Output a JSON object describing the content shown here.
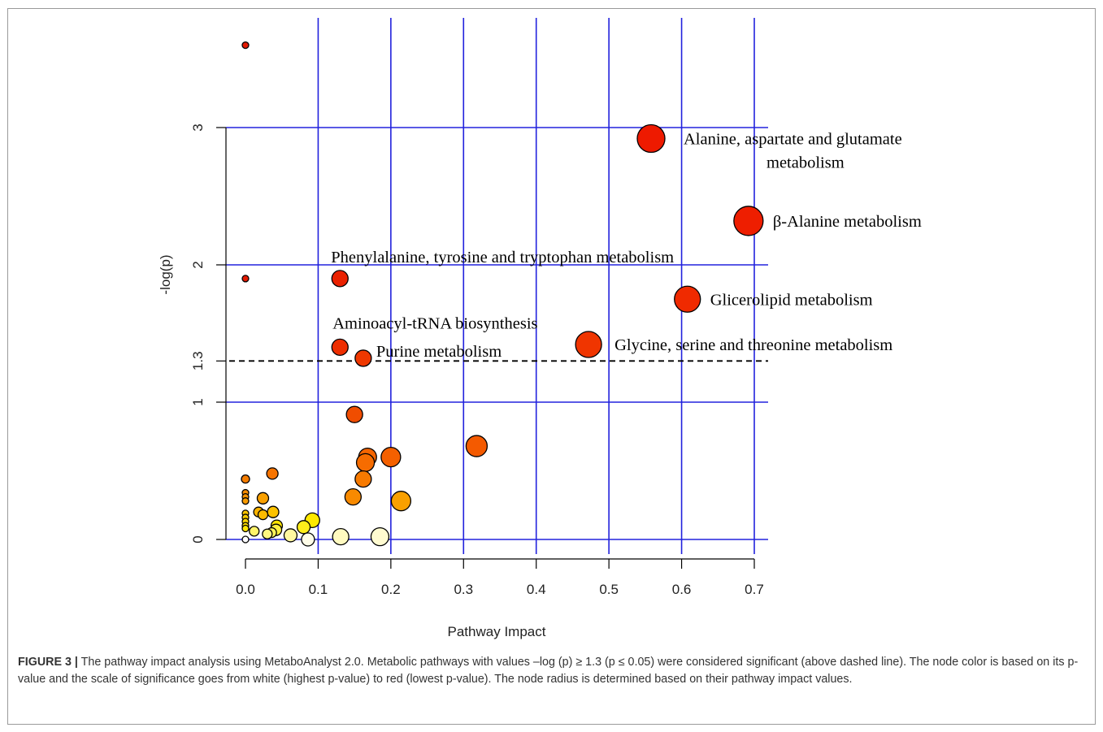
{
  "chart_data": {
    "type": "scatter",
    "xlabel": "Pathway Impact",
    "ylabel": "-log(p)",
    "xlim": [
      -0.03,
      0.72
    ],
    "ylim": [
      0,
      3.8
    ],
    "x_ticks": [
      "0.0",
      "0.1",
      "0.2",
      "0.3",
      "0.4",
      "0.5",
      "0.6",
      "0.7"
    ],
    "y_ticks": [
      "0",
      "1",
      "1.3",
      "2",
      "3"
    ],
    "grid": true,
    "grid_color": "#2222dd",
    "threshold": {
      "y": 1.3,
      "style": "dashed"
    },
    "points": [
      {
        "x": 0.0,
        "y": 3.6,
        "r": 4,
        "color": "#e31a00"
      },
      {
        "x": 0.0,
        "y": 1.9,
        "r": 4,
        "color": "#e31a00"
      },
      {
        "x": 0.558,
        "y": 2.92,
        "r": 17,
        "color": "#ee1a00",
        "label": "Alanine, aspartate and glutamate\nmetabolism"
      },
      {
        "x": 0.692,
        "y": 2.32,
        "r": 18,
        "color": "#ee1e00",
        "label": "β-Alanine metabolism"
      },
      {
        "x": 0.608,
        "y": 1.75,
        "r": 16,
        "color": "#f02a00",
        "label": "Glicerolipid metabolism"
      },
      {
        "x": 0.13,
        "y": 1.9,
        "r": 10,
        "color": "#ea2100",
        "label": "Phenylalanine, tyrosine and tryptophan metabolism"
      },
      {
        "x": 0.13,
        "y": 1.4,
        "r": 10,
        "color": "#ee2e00",
        "label": "Aminoacyl-tRNA biosynthesis"
      },
      {
        "x": 0.472,
        "y": 1.42,
        "r": 16,
        "color": "#f03500",
        "label": "Glycine, serine and threonine metabolism"
      },
      {
        "x": 0.162,
        "y": 1.32,
        "r": 10,
        "color": "#ef3800",
        "label": "Purine metabolism"
      },
      {
        "x": 0.15,
        "y": 0.91,
        "r": 10,
        "color": "#f04d00"
      },
      {
        "x": 0.318,
        "y": 0.68,
        "r": 13,
        "color": "#f45a00"
      },
      {
        "x": 0.2,
        "y": 0.6,
        "r": 12,
        "color": "#f46000"
      },
      {
        "x": 0.168,
        "y": 0.6,
        "r": 11,
        "color": "#f56500"
      },
      {
        "x": 0.165,
        "y": 0.56,
        "r": 11,
        "color": "#f66c00"
      },
      {
        "x": 0.162,
        "y": 0.44,
        "r": 10,
        "color": "#f77a00"
      },
      {
        "x": 0.148,
        "y": 0.31,
        "r": 10,
        "color": "#f88a00"
      },
      {
        "x": 0.214,
        "y": 0.28,
        "r": 12,
        "color": "#f9a000"
      },
      {
        "x": 0.037,
        "y": 0.48,
        "r": 7,
        "color": "#f77400"
      },
      {
        "x": 0.0,
        "y": 0.44,
        "r": 5,
        "color": "#f57d00"
      },
      {
        "x": 0.0,
        "y": 0.34,
        "r": 4,
        "color": "#f78c00"
      },
      {
        "x": 0.0,
        "y": 0.31,
        "r": 4,
        "color": "#f89400"
      },
      {
        "x": 0.0,
        "y": 0.28,
        "r": 4,
        "color": "#f99b00"
      },
      {
        "x": 0.024,
        "y": 0.3,
        "r": 7,
        "color": "#f9a000"
      },
      {
        "x": 0.018,
        "y": 0.2,
        "r": 6,
        "color": "#fbb300"
      },
      {
        "x": 0.024,
        "y": 0.18,
        "r": 6,
        "color": "#fbbb00"
      },
      {
        "x": 0.038,
        "y": 0.2,
        "r": 7,
        "color": "#fcc200"
      },
      {
        "x": 0.0,
        "y": 0.19,
        "r": 4,
        "color": "#fbc400"
      },
      {
        "x": 0.0,
        "y": 0.16,
        "r": 4,
        "color": "#fccc00"
      },
      {
        "x": 0.0,
        "y": 0.13,
        "r": 4,
        "color": "#fdd400"
      },
      {
        "x": 0.0,
        "y": 0.1,
        "r": 4,
        "color": "#fede00"
      },
      {
        "x": 0.0,
        "y": 0.08,
        "r": 4,
        "color": "#ffe600"
      },
      {
        "x": 0.043,
        "y": 0.1,
        "r": 7,
        "color": "#ffe400"
      },
      {
        "x": 0.092,
        "y": 0.14,
        "r": 9,
        "color": "#ffe800"
      },
      {
        "x": 0.08,
        "y": 0.09,
        "r": 8,
        "color": "#ffee1a"
      },
      {
        "x": 0.042,
        "y": 0.07,
        "r": 7,
        "color": "#fff040"
      },
      {
        "x": 0.036,
        "y": 0.05,
        "r": 6,
        "color": "#fff35a"
      },
      {
        "x": 0.012,
        "y": 0.06,
        "r": 6,
        "color": "#fff46a"
      },
      {
        "x": 0.03,
        "y": 0.04,
        "r": 6,
        "color": "#fff780"
      },
      {
        "x": 0.062,
        "y": 0.03,
        "r": 8,
        "color": "#fff8a0"
      },
      {
        "x": 0.131,
        "y": 0.02,
        "r": 10,
        "color": "#fffac0"
      },
      {
        "x": 0.185,
        "y": 0.02,
        "r": 11,
        "color": "#fffbd0"
      },
      {
        "x": 0.086,
        "y": 0.0,
        "r": 8,
        "color": "#fffde8"
      },
      {
        "x": 0.0,
        "y": 0.0,
        "r": 4,
        "color": "#ffffff"
      }
    ]
  },
  "caption": {
    "figure_label": "FIGURE 3 |",
    "text": "The pathway impact analysis using MetaboAnalyst 2.0. Metabolic pathways with values –log (p) ≥ 1.3 (p ≤ 0.05) were considered significant (above dashed line). The node color is based on its p-value and the scale of significance goes from white (highest p-value) to red (lowest p-value). The node radius is determined based on their pathway impact values."
  }
}
